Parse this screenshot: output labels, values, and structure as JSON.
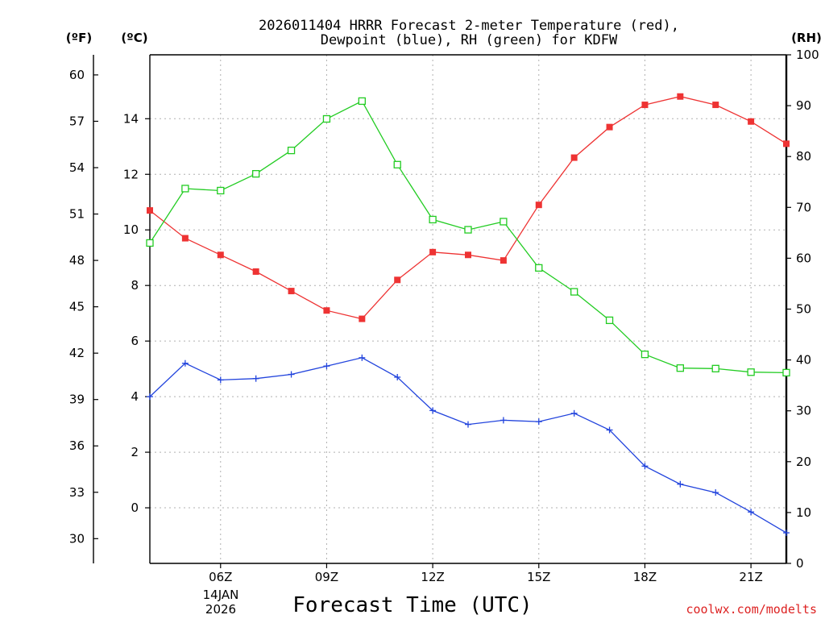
{
  "chart_data": {
    "type": "line",
    "title_line1": "2026011404 HRRR Forecast 2-meter Temperature (red),",
    "title_line2": "Dewpoint (blue), RH (green) for KDFW",
    "xlabel": "Forecast Time (UTC)",
    "credit": "coolwx.com/modelts",
    "date_label_line1": "14JAN",
    "date_label_line2": "2026",
    "x_hours": [
      4,
      5,
      6,
      7,
      8,
      9,
      10,
      11,
      12,
      13,
      14,
      15,
      16,
      17,
      18,
      19,
      20,
      21,
      22
    ],
    "x_range": [
      4,
      22
    ],
    "x_ticks": [
      {
        "hour": 6,
        "label": "06Z"
      },
      {
        "hour": 9,
        "label": "09Z"
      },
      {
        "hour": 12,
        "label": "12Z"
      },
      {
        "hour": 15,
        "label": "15Z"
      },
      {
        "hour": 18,
        "label": "18Z"
      },
      {
        "hour": 21,
        "label": "21Z"
      }
    ],
    "axes": {
      "fahrenheit": {
        "unit_label": "(ºF)",
        "range": [
          28.4,
          61.3
        ],
        "ticks": [
          "30",
          "33",
          "36",
          "39",
          "42",
          "45",
          "48",
          "51",
          "54",
          "57",
          "60"
        ]
      },
      "celsius": {
        "unit_label": "(ºC)",
        "range": [
          -2,
          16.3
        ],
        "ticks": [
          "0",
          "2",
          "4",
          "6",
          "8",
          "10",
          "12",
          "14"
        ]
      },
      "rh": {
        "unit_label": "(RH)",
        "range": [
          0,
          100
        ],
        "ticks": [
          "0",
          "10",
          "20",
          "30",
          "40",
          "50",
          "60",
          "70",
          "80",
          "90",
          "100"
        ]
      }
    },
    "series": [
      {
        "name": "2-meter Temperature",
        "axis": "celsius",
        "color": "#ee3333",
        "marker": "filled-square",
        "values": [
          10.7,
          9.7,
          9.1,
          8.5,
          7.8,
          7.1,
          6.8,
          8.2,
          9.2,
          9.1,
          8.9,
          10.9,
          12.6,
          13.7,
          14.5,
          14.8,
          14.5,
          13.9,
          13.1
        ]
      },
      {
        "name": "Dewpoint",
        "axis": "celsius",
        "color": "#2244dd",
        "marker": "plus",
        "values": [
          4.0,
          5.2,
          4.6,
          4.65,
          4.8,
          5.1,
          5.4,
          4.7,
          3.5,
          3.0,
          3.15,
          3.1,
          3.4,
          2.8,
          1.5,
          0.85,
          0.55,
          -0.15,
          -0.9
        ]
      },
      {
        "name": "Relative Humidity",
        "axis": "rh",
        "color": "#22cc22",
        "marker": "open-square",
        "values": [
          63,
          73.7,
          73.3,
          76.6,
          81.2,
          87.4,
          90.9,
          78.4,
          67.6,
          65.6,
          67.2,
          58.1,
          53.4,
          47.8,
          41.1,
          38.4,
          38.3,
          37.6,
          37.5
        ]
      }
    ]
  }
}
